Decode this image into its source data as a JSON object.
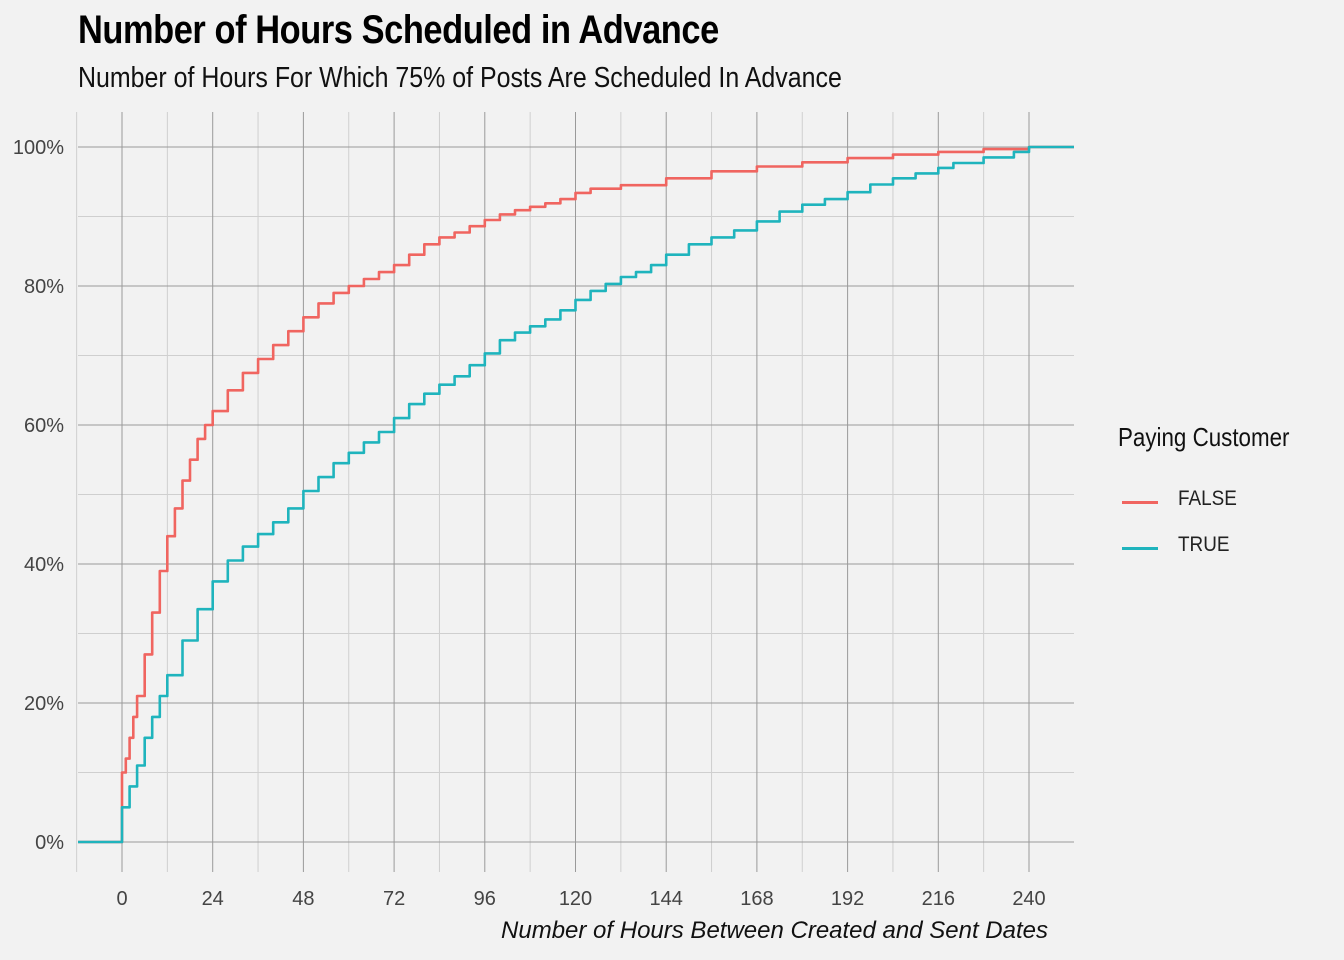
{
  "title": "Number of Hours Scheduled in Advance",
  "subtitle": "Number of Hours For Which 75% of Posts Are Scheduled In Advance",
  "legend": {
    "title": "Paying Customer",
    "items": [
      {
        "label": "FALSE",
        "color": "#f06560"
      },
      {
        "label": "TRUE",
        "color": "#1fb4bd"
      }
    ]
  },
  "chart_data": {
    "type": "line",
    "title": "Number of Hours Scheduled in Advance",
    "subtitle": "Number of Hours For Which 75% of Posts Are Scheduled In Advance",
    "xlabel": "Number of Hours Between Created and Sent Dates",
    "ylabel": "",
    "xlim": [
      -24,
      252
    ],
    "ylim": [
      0,
      1
    ],
    "x_ticks": [
      0,
      24,
      48,
      72,
      96,
      120,
      144,
      168,
      192,
      216,
      240
    ],
    "y_ticks": [
      0,
      0.2,
      0.4,
      0.6,
      0.8,
      1.0
    ],
    "y_tick_labels": [
      "0%",
      "20%",
      "40%",
      "60%",
      "80%",
      "100%"
    ],
    "grid": true,
    "legend_position": "right",
    "series": [
      {
        "name": "FALSE",
        "color": "#f06560",
        "points": [
          [
            -24,
            0
          ],
          [
            0,
            0
          ],
          [
            0,
            0.1
          ],
          [
            1,
            0.12
          ],
          [
            2,
            0.15
          ],
          [
            3,
            0.18
          ],
          [
            4,
            0.21
          ],
          [
            6,
            0.27
          ],
          [
            8,
            0.33
          ],
          [
            10,
            0.39
          ],
          [
            12,
            0.44
          ],
          [
            14,
            0.48
          ],
          [
            16,
            0.52
          ],
          [
            18,
            0.55
          ],
          [
            20,
            0.58
          ],
          [
            22,
            0.6
          ],
          [
            24,
            0.62
          ],
          [
            28,
            0.65
          ],
          [
            32,
            0.675
          ],
          [
            36,
            0.695
          ],
          [
            40,
            0.715
          ],
          [
            44,
            0.735
          ],
          [
            48,
            0.755
          ],
          [
            52,
            0.775
          ],
          [
            56,
            0.79
          ],
          [
            60,
            0.8
          ],
          [
            64,
            0.81
          ],
          [
            68,
            0.82
          ],
          [
            72,
            0.83
          ],
          [
            76,
            0.845
          ],
          [
            80,
            0.86
          ],
          [
            84,
            0.87
          ],
          [
            88,
            0.877
          ],
          [
            92,
            0.886
          ],
          [
            96,
            0.895
          ],
          [
            100,
            0.903
          ],
          [
            104,
            0.909
          ],
          [
            108,
            0.914
          ],
          [
            112,
            0.919
          ],
          [
            116,
            0.925
          ],
          [
            120,
            0.934
          ],
          [
            124,
            0.94
          ],
          [
            132,
            0.945
          ],
          [
            144,
            0.955
          ],
          [
            156,
            0.965
          ],
          [
            168,
            0.972
          ],
          [
            180,
            0.978
          ],
          [
            192,
            0.984
          ],
          [
            204,
            0.989
          ],
          [
            216,
            0.993
          ],
          [
            228,
            0.997
          ],
          [
            240,
            1.0
          ],
          [
            252,
            1.0
          ]
        ]
      },
      {
        "name": "TRUE",
        "color": "#1fb4bd",
        "points": [
          [
            -24,
            0
          ],
          [
            0,
            0
          ],
          [
            0,
            0.05
          ],
          [
            2,
            0.08
          ],
          [
            4,
            0.11
          ],
          [
            6,
            0.15
          ],
          [
            8,
            0.18
          ],
          [
            10,
            0.21
          ],
          [
            12,
            0.24
          ],
          [
            16,
            0.29
          ],
          [
            20,
            0.335
          ],
          [
            24,
            0.375
          ],
          [
            28,
            0.405
          ],
          [
            32,
            0.425
          ],
          [
            36,
            0.443
          ],
          [
            40,
            0.46
          ],
          [
            44,
            0.48
          ],
          [
            48,
            0.505
          ],
          [
            52,
            0.525
          ],
          [
            56,
            0.545
          ],
          [
            60,
            0.56
          ],
          [
            64,
            0.575
          ],
          [
            68,
            0.59
          ],
          [
            72,
            0.61
          ],
          [
            76,
            0.63
          ],
          [
            80,
            0.645
          ],
          [
            84,
            0.658
          ],
          [
            88,
            0.67
          ],
          [
            92,
            0.686
          ],
          [
            96,
            0.703
          ],
          [
            100,
            0.722
          ],
          [
            104,
            0.733
          ],
          [
            108,
            0.742
          ],
          [
            112,
            0.752
          ],
          [
            116,
            0.765
          ],
          [
            120,
            0.78
          ],
          [
            124,
            0.793
          ],
          [
            128,
            0.803
          ],
          [
            132,
            0.813
          ],
          [
            136,
            0.82
          ],
          [
            140,
            0.83
          ],
          [
            144,
            0.845
          ],
          [
            150,
            0.86
          ],
          [
            156,
            0.87
          ],
          [
            162,
            0.88
          ],
          [
            168,
            0.893
          ],
          [
            174,
            0.907
          ],
          [
            180,
            0.917
          ],
          [
            186,
            0.925
          ],
          [
            192,
            0.935
          ],
          [
            198,
            0.946
          ],
          [
            204,
            0.955
          ],
          [
            210,
            0.962
          ],
          [
            216,
            0.97
          ],
          [
            220,
            0.977
          ],
          [
            228,
            0.985
          ],
          [
            236,
            0.993
          ],
          [
            240,
            1.0
          ],
          [
            252,
            1.0
          ]
        ]
      }
    ]
  }
}
